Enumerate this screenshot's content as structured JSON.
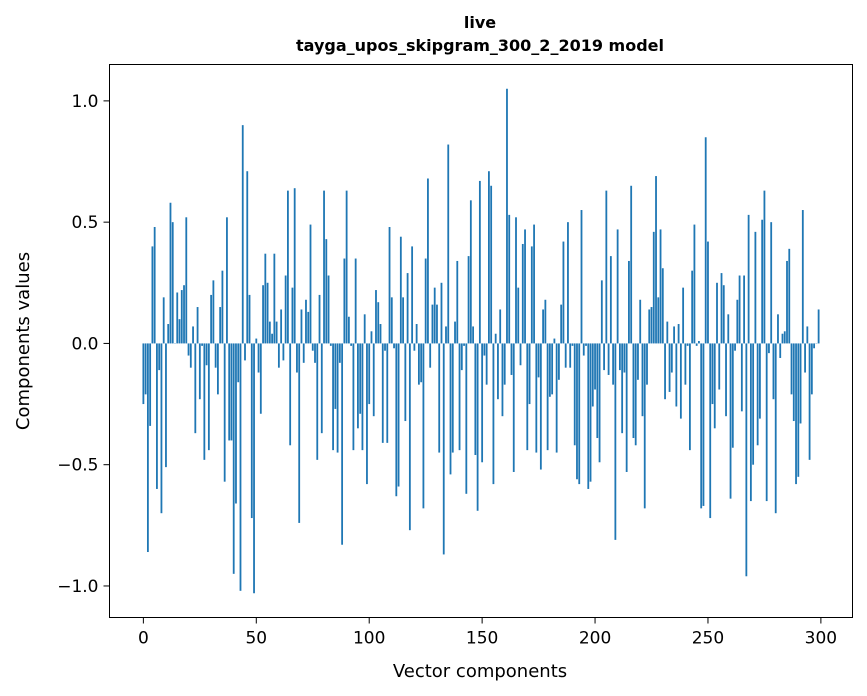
{
  "chart_data": {
    "type": "bar",
    "title": "live",
    "subtitle": "tayga_upos_skipgram_300_2_2019 model",
    "xlabel": "Vector components",
    "ylabel": "Components values",
    "xlim": [
      -15,
      314
    ],
    "ylim": [
      -1.13,
      1.15
    ],
    "xticks": [
      0,
      50,
      100,
      150,
      200,
      250,
      300
    ],
    "xtick_labels": [
      "0",
      "50",
      "100",
      "150",
      "200",
      "250",
      "300"
    ],
    "yticks": [
      -1.0,
      -0.5,
      0.0,
      0.5,
      1.0
    ],
    "ytick_labels": [
      "−1.0",
      "−0.5",
      "0.0",
      "0.5",
      "1.0"
    ],
    "grid": false,
    "bar_color": "#1f77b4",
    "values": [
      -0.25,
      -0.21,
      -0.86,
      -0.34,
      0.4,
      0.48,
      -0.6,
      -0.11,
      -0.7,
      0.19,
      -0.51,
      0.08,
      0.58,
      0.5,
      0.0,
      0.21,
      0.1,
      0.22,
      0.24,
      0.52,
      -0.05,
      -0.1,
      0.07,
      -0.37,
      0.15,
      -0.23,
      -0.01,
      -0.48,
      -0.09,
      -0.44,
      0.2,
      0.26,
      -0.1,
      -0.21,
      0.15,
      0.3,
      -0.57,
      0.52,
      -0.4,
      -0.4,
      -0.95,
      -0.66,
      -0.16,
      -1.02,
      0.9,
      -0.07,
      0.71,
      0.2,
      -0.72,
      -1.03,
      0.02,
      -0.12,
      -0.29,
      0.24,
      0.37,
      0.25,
      0.09,
      0.04,
      0.37,
      0.09,
      -0.1,
      0.14,
      -0.07,
      0.28,
      0.63,
      -0.42,
      0.23,
      0.64,
      -0.12,
      -0.74,
      0.14,
      -0.08,
      0.18,
      0.13,
      0.49,
      -0.03,
      -0.08,
      -0.48,
      0.2,
      -0.37,
      0.63,
      0.43,
      0.28,
      -0.01,
      -0.44,
      -0.27,
      -0.45,
      -0.08,
      -0.83,
      0.35,
      0.63,
      0.11,
      -0.01,
      -0.44,
      0.35,
      -0.35,
      -0.29,
      -0.44,
      0.12,
      -0.58,
      -0.25,
      0.05,
      -0.3,
      0.22,
      0.17,
      0.08,
      -0.41,
      -0.03,
      -0.41,
      0.48,
      0.19,
      -0.02,
      -0.63,
      -0.59,
      0.44,
      0.19,
      -0.32,
      0.29,
      -0.77,
      0.4,
      -0.03,
      0.08,
      -0.17,
      -0.16,
      -0.68,
      0.35,
      0.68,
      -0.1,
      0.16,
      0.23,
      0.16,
      -0.45,
      0.25,
      -0.87,
      0.07,
      0.82,
      -0.54,
      -0.45,
      0.09,
      0.34,
      -0.44,
      -0.11,
      -0.01,
      -0.62,
      0.36,
      0.59,
      0.07,
      -0.46,
      -0.69,
      0.67,
      -0.49,
      -0.05,
      -0.17,
      0.71,
      0.65,
      -0.58,
      0.04,
      -0.23,
      0.14,
      -0.3,
      -0.17,
      1.05,
      0.53,
      -0.13,
      -0.53,
      0.52,
      0.23,
      -0.09,
      0.41,
      0.47,
      -0.44,
      -0.25,
      0.4,
      0.49,
      -0.45,
      -0.14,
      -0.52,
      0.14,
      0.18,
      -0.44,
      -0.22,
      -0.21,
      0.02,
      -0.45,
      -0.15,
      0.16,
      0.42,
      -0.1,
      0.5,
      -0.1,
      -0.01,
      -0.42,
      -0.56,
      -0.58,
      0.55,
      -0.05,
      -0.01,
      -0.6,
      -0.57,
      -0.26,
      -0.19,
      -0.39,
      -0.49,
      0.26,
      -0.11,
      0.63,
      -0.13,
      0.36,
      -0.17,
      -0.81,
      0.47,
      -0.11,
      -0.37,
      -0.12,
      -0.53,
      0.34,
      0.65,
      -0.39,
      -0.42,
      -0.15,
      0.18,
      -0.3,
      -0.68,
      -0.17,
      0.14,
      0.15,
      0.46,
      0.69,
      0.19,
      0.47,
      0.31,
      -0.23,
      0.09,
      -0.2,
      -0.12,
      0.07,
      -0.26,
      0.08,
      -0.31,
      0.23,
      -0.17,
      -0.01,
      -0.44,
      0.3,
      0.49,
      -0.01,
      0.01,
      -0.68,
      -0.67,
      0.85,
      0.42,
      -0.72,
      -0.25,
      -0.35,
      0.25,
      -0.19,
      0.29,
      0.24,
      -0.3,
      0.12,
      -0.64,
      -0.43,
      -0.03,
      0.18,
      0.28,
      -0.28,
      0.28,
      -0.96,
      0.53,
      -0.65,
      -0.5,
      0.46,
      -0.42,
      -0.31,
      0.51,
      0.63,
      -0.65,
      -0.04,
      0.5,
      -0.23,
      -0.7,
      0.12,
      -0.06,
      0.04,
      0.05,
      0.34,
      0.39,
      -0.21,
      -0.32,
      -0.58,
      -0.55,
      -0.33,
      0.55,
      -0.12,
      0.07,
      -0.48,
      -0.21,
      -0.02,
      0.0,
      0.14
    ]
  }
}
